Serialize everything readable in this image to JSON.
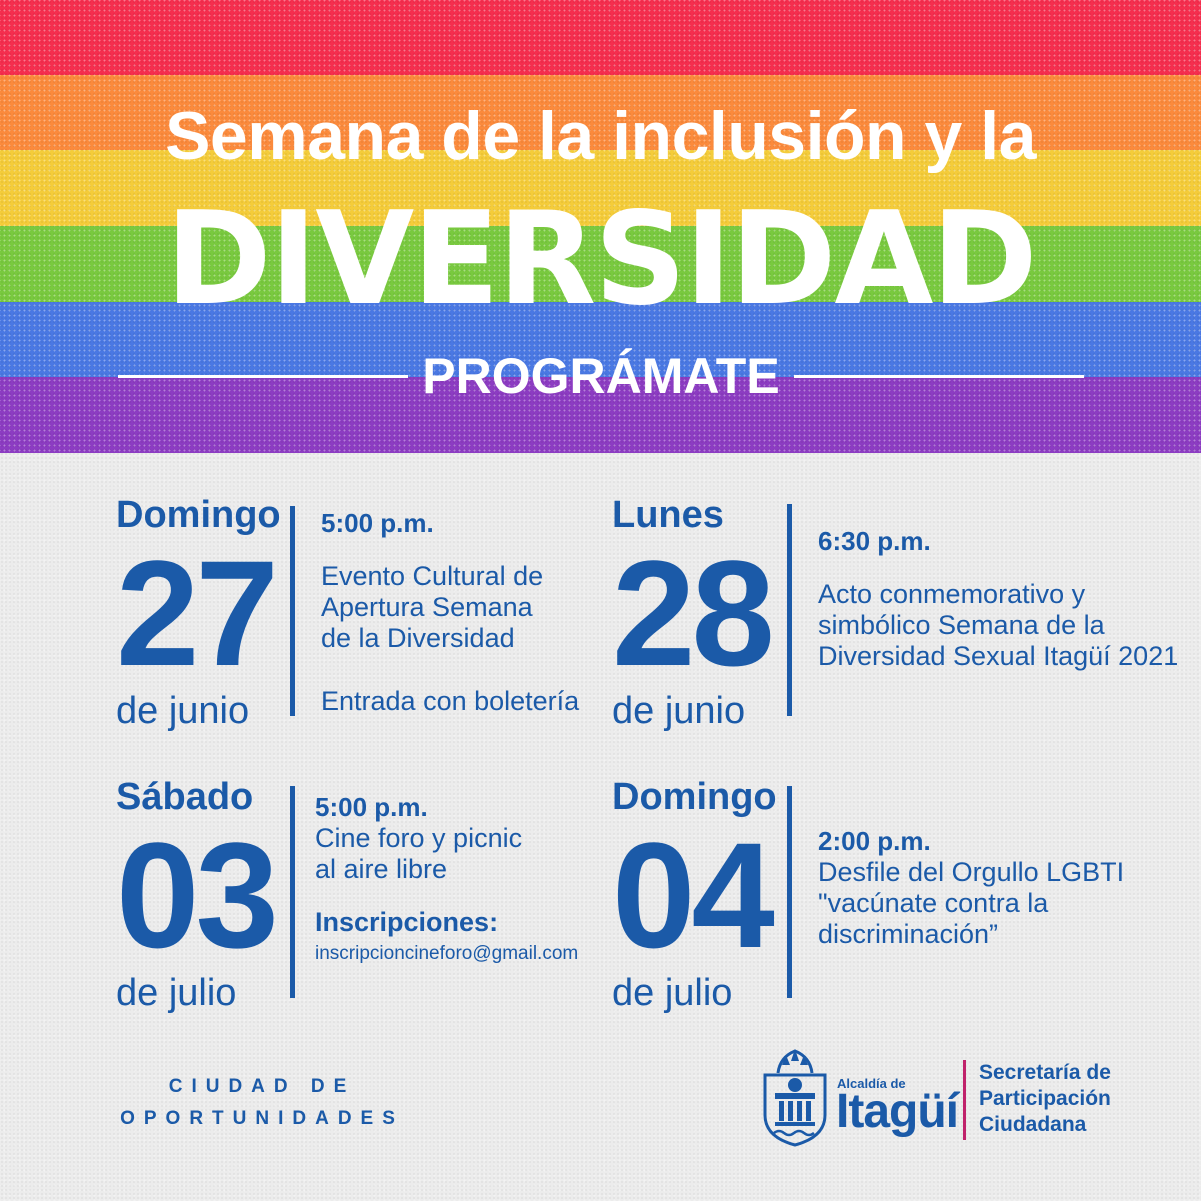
{
  "header": {
    "title_line1": "Semana de la inclusión y la",
    "title_line2": "DIVERSIDAD",
    "subtitle": "PROGRÁMATE",
    "rainbow_colors": [
      "#f52e4e",
      "#fb8a3c",
      "#f4cc3a",
      "#79c93f",
      "#4a78e3",
      "#8c3cc2"
    ]
  },
  "events": [
    {
      "day_name": "Domingo",
      "day_number": "27",
      "month": "de junio",
      "time": "5:00 p.m.",
      "lines": [
        "Evento Cultural de",
        "Apertura Semana",
        "de la Diversidad"
      ],
      "extra": "Entrada con boletería"
    },
    {
      "day_name": "Lunes",
      "day_number": "28",
      "month": "de junio",
      "time": "6:30 p.m.",
      "lines": [
        "Acto conmemorativo y",
        "simbólico Semana de la",
        "Diversidad Sexual Itagüí 2021"
      ]
    },
    {
      "day_name": "Sábado",
      "day_number": "03",
      "month": "de julio",
      "time": "5:00 p.m.",
      "lines": [
        "Cine foro y picnic",
        "al aire libre"
      ],
      "registration_label": "Inscripciones:",
      "email": "inscripcioncineforo@gmail.com"
    },
    {
      "day_name": "Domingo",
      "day_number": "04",
      "month": "de julio",
      "time": "2:00 p.m.",
      "lines": [
        "Desfile del Orgullo LGBTI",
        "\"vacúnate contra la",
        "discriminación”"
      ]
    }
  ],
  "footer": {
    "slogan_line1": "CIUDAD DE",
    "slogan_line2": "OPORTUNIDADES",
    "alcaldia_small": "Alcaldía de",
    "alcaldia_big": "Itagüí",
    "secretaria_lines": [
      "Secretaría de",
      "Participación",
      "Ciudadana"
    ],
    "colors": {
      "blue": "#1b5aa8",
      "divider": "#c0226b"
    }
  }
}
